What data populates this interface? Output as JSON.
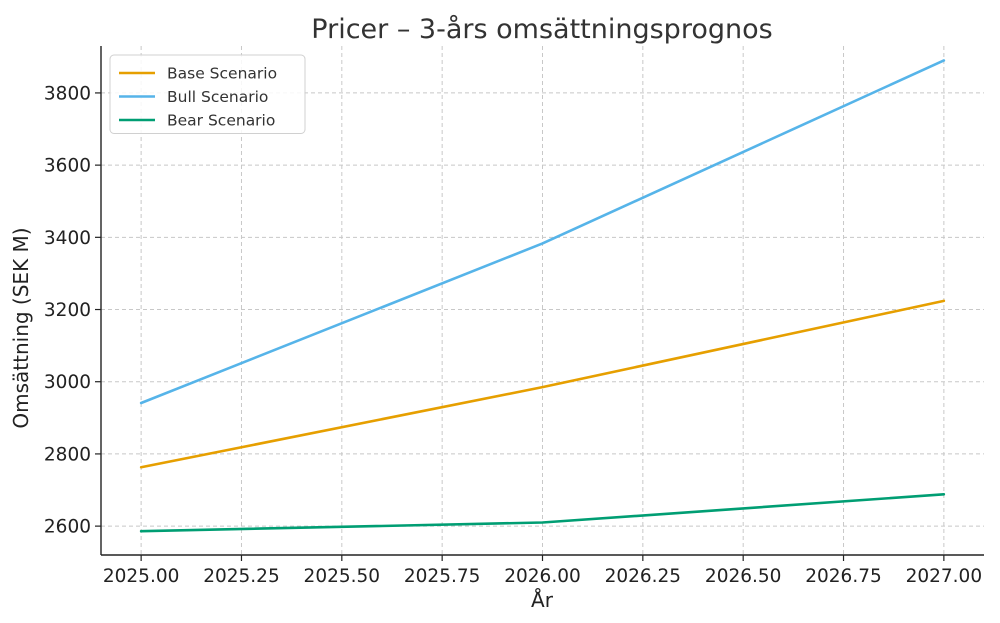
{
  "chart_data": {
    "type": "line",
    "title": "Pricer – 3-års omsättningsprognos",
    "xlabel": "År",
    "ylabel": "Omsättning (SEK M)",
    "x": [
      2025,
      2026,
      2027
    ],
    "xlim": [
      2024.9,
      2027.1
    ],
    "ylim": [
      2520,
      3930
    ],
    "x_ticks": [
      2025.0,
      2025.25,
      2025.5,
      2025.75,
      2026.0,
      2026.25,
      2026.5,
      2026.75,
      2027.0
    ],
    "x_tick_labels": [
      "2025.00",
      "2025.25",
      "2025.50",
      "2025.75",
      "2026.00",
      "2026.25",
      "2026.50",
      "2026.75",
      "2027.00"
    ],
    "y_ticks": [
      2600,
      2800,
      3000,
      3200,
      3400,
      3600,
      3800
    ],
    "y_tick_labels": [
      "2600",
      "2800",
      "3000",
      "3200",
      "3400",
      "3600",
      "3800"
    ],
    "grid": true,
    "legend_position": "top-left",
    "series": [
      {
        "name": "Base Scenario",
        "color": "#E69F00",
        "values": [
          2763,
          2985,
          3224
        ]
      },
      {
        "name": "Bull Scenario",
        "color": "#56B4E9",
        "values": [
          2941,
          3383,
          3890
        ]
      },
      {
        "name": "Bear Scenario",
        "color": "#009E73",
        "values": [
          2586,
          2610,
          2688
        ]
      }
    ]
  }
}
